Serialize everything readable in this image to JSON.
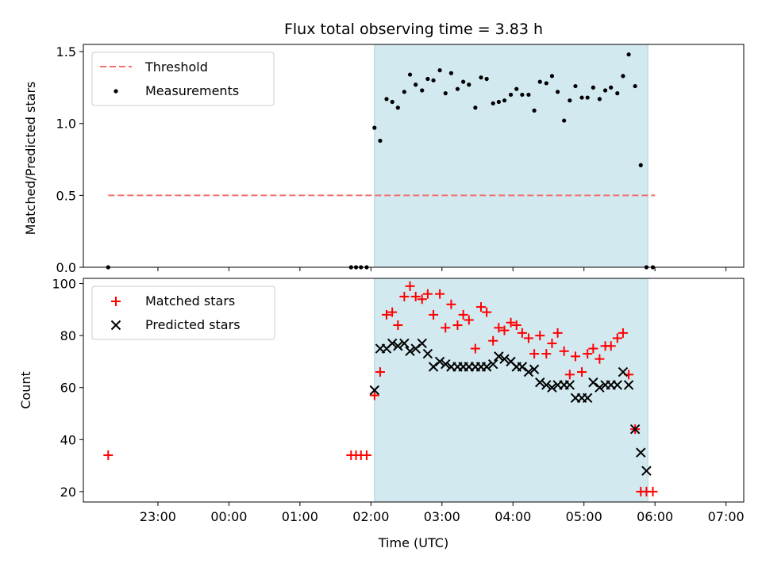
{
  "chart_data": [
    {
      "type": "scatter",
      "title": "Flux total observing time = 3.83 h",
      "xlabel": "",
      "ylabel": "Matched/Predicted stars",
      "ylim": [
        0,
        1.55
      ],
      "xlim": [
        -1.05,
        8.25
      ],
      "yticks": [
        0.0,
        0.5,
        1.0,
        1.5
      ],
      "ytick_labels": [
        "0.0",
        "0.5",
        "1.0",
        "1.5"
      ],
      "legend_position": "top-left",
      "grid": false,
      "shaded_span": {
        "x0": 3.05,
        "x1": 6.9,
        "color": "#d2e9f0"
      },
      "threshold": {
        "name": "Threshold",
        "value": 0.5,
        "x0": -0.7,
        "x1": 7.0,
        "color": "#f07070"
      },
      "series": [
        {
          "name": "Measurements",
          "color": "#000000",
          "x": [
            -0.7,
            2.72,
            2.79,
            2.86,
            2.94,
            3.05,
            3.13,
            3.22,
            3.3,
            3.38,
            3.47,
            3.55,
            3.63,
            3.72,
            3.8,
            3.88,
            3.97,
            4.05,
            4.13,
            4.22,
            4.3,
            4.38,
            4.47,
            4.55,
            4.63,
            4.72,
            4.8,
            4.88,
            4.97,
            5.05,
            5.13,
            5.22,
            5.3,
            5.38,
            5.47,
            5.55,
            5.63,
            5.72,
            5.8,
            5.88,
            5.97,
            6.05,
            6.13,
            6.22,
            6.3,
            6.38,
            6.47,
            6.55,
            6.63,
            6.72,
            6.8,
            6.88,
            6.97
          ],
          "y": [
            0.0,
            0.0,
            0.0,
            0.0,
            0.0,
            0.97,
            0.88,
            1.17,
            1.15,
            1.11,
            1.22,
            1.34,
            1.27,
            1.23,
            1.31,
            1.3,
            1.37,
            1.21,
            1.35,
            1.24,
            1.29,
            1.27,
            1.11,
            1.32,
            1.31,
            1.14,
            1.15,
            1.16,
            1.2,
            1.24,
            1.2,
            1.2,
            1.09,
            1.29,
            1.28,
            1.33,
            1.22,
            1.02,
            1.16,
            1.26,
            1.18,
            1.18,
            1.25,
            1.17,
            1.23,
            1.25,
            1.21,
            1.33,
            1.48,
            1.26,
            0.71,
            0.0,
            0.0
          ]
        }
      ]
    },
    {
      "type": "scatter",
      "title": "",
      "xlabel": "Time (UTC)",
      "ylabel": "Count",
      "ylim": [
        16,
        102
      ],
      "xlim": [
        -1.05,
        8.25
      ],
      "yticks": [
        20,
        40,
        60,
        80,
        100
      ],
      "ytick_labels": [
        "20",
        "40",
        "60",
        "80",
        "100"
      ],
      "xticks": [
        0,
        1,
        2,
        3,
        4,
        5,
        6,
        7,
        8
      ],
      "xtick_labels": [
        "23:00",
        "00:00",
        "01:00",
        "02:00",
        "03:00",
        "04:00",
        "05:00",
        "06:00",
        "07:00"
      ],
      "legend_position": "top-left",
      "grid": false,
      "shaded_span": {
        "x0": 3.05,
        "x1": 6.9,
        "color": "#d2e9f0"
      },
      "series": [
        {
          "name": "Matched stars",
          "marker": "plus",
          "color": "#ff0000",
          "x": [
            -0.7,
            2.72,
            2.79,
            2.86,
            2.94,
            3.05,
            3.13,
            3.22,
            3.3,
            3.38,
            3.47,
            3.55,
            3.63,
            3.72,
            3.8,
            3.88,
            3.97,
            4.05,
            4.13,
            4.22,
            4.3,
            4.38,
            4.47,
            4.55,
            4.63,
            4.72,
            4.8,
            4.88,
            4.97,
            5.05,
            5.13,
            5.22,
            5.3,
            5.38,
            5.47,
            5.55,
            5.63,
            5.72,
            5.8,
            5.88,
            5.97,
            6.05,
            6.13,
            6.22,
            6.3,
            6.38,
            6.47,
            6.55,
            6.63,
            6.72,
            6.8,
            6.88,
            6.97
          ],
          "y": [
            34,
            34,
            34,
            34,
            34,
            57,
            66,
            88,
            89,
            84,
            95,
            99,
            95,
            94,
            96,
            88,
            96,
            83,
            92,
            84,
            88,
            86,
            75,
            91,
            89,
            78,
            83,
            82,
            85,
            84,
            81,
            79,
            73,
            80,
            73,
            77,
            81,
            74,
            65,
            72,
            66,
            73,
            75,
            71,
            76,
            76,
            79,
            81,
            65,
            44,
            20,
            20,
            20
          ]
        },
        {
          "name": "Predicted stars",
          "marker": "x",
          "color": "#000000",
          "x": [
            3.05,
            3.13,
            3.22,
            3.3,
            3.38,
            3.47,
            3.55,
            3.63,
            3.72,
            3.8,
            3.88,
            3.97,
            4.05,
            4.13,
            4.22,
            4.3,
            4.38,
            4.47,
            4.55,
            4.63,
            4.72,
            4.8,
            4.88,
            4.97,
            5.05,
            5.13,
            5.22,
            5.3,
            5.38,
            5.47,
            5.55,
            5.63,
            5.72,
            5.8,
            5.88,
            5.97,
            6.05,
            6.13,
            6.22,
            6.3,
            6.38,
            6.47,
            6.55,
            6.63,
            6.72,
            6.8,
            6.88
          ],
          "y": [
            59,
            75,
            75,
            77,
            76,
            77,
            74,
            75,
            77,
            73,
            68,
            70,
            69,
            68,
            68,
            68,
            68,
            68,
            68,
            68,
            69,
            72,
            71,
            70,
            68,
            68,
            66,
            67,
            62,
            61,
            60,
            61,
            61,
            61,
            56,
            56,
            56,
            62,
            60,
            61,
            61,
            61,
            66,
            61,
            44,
            35,
            28
          ]
        }
      ]
    }
  ]
}
